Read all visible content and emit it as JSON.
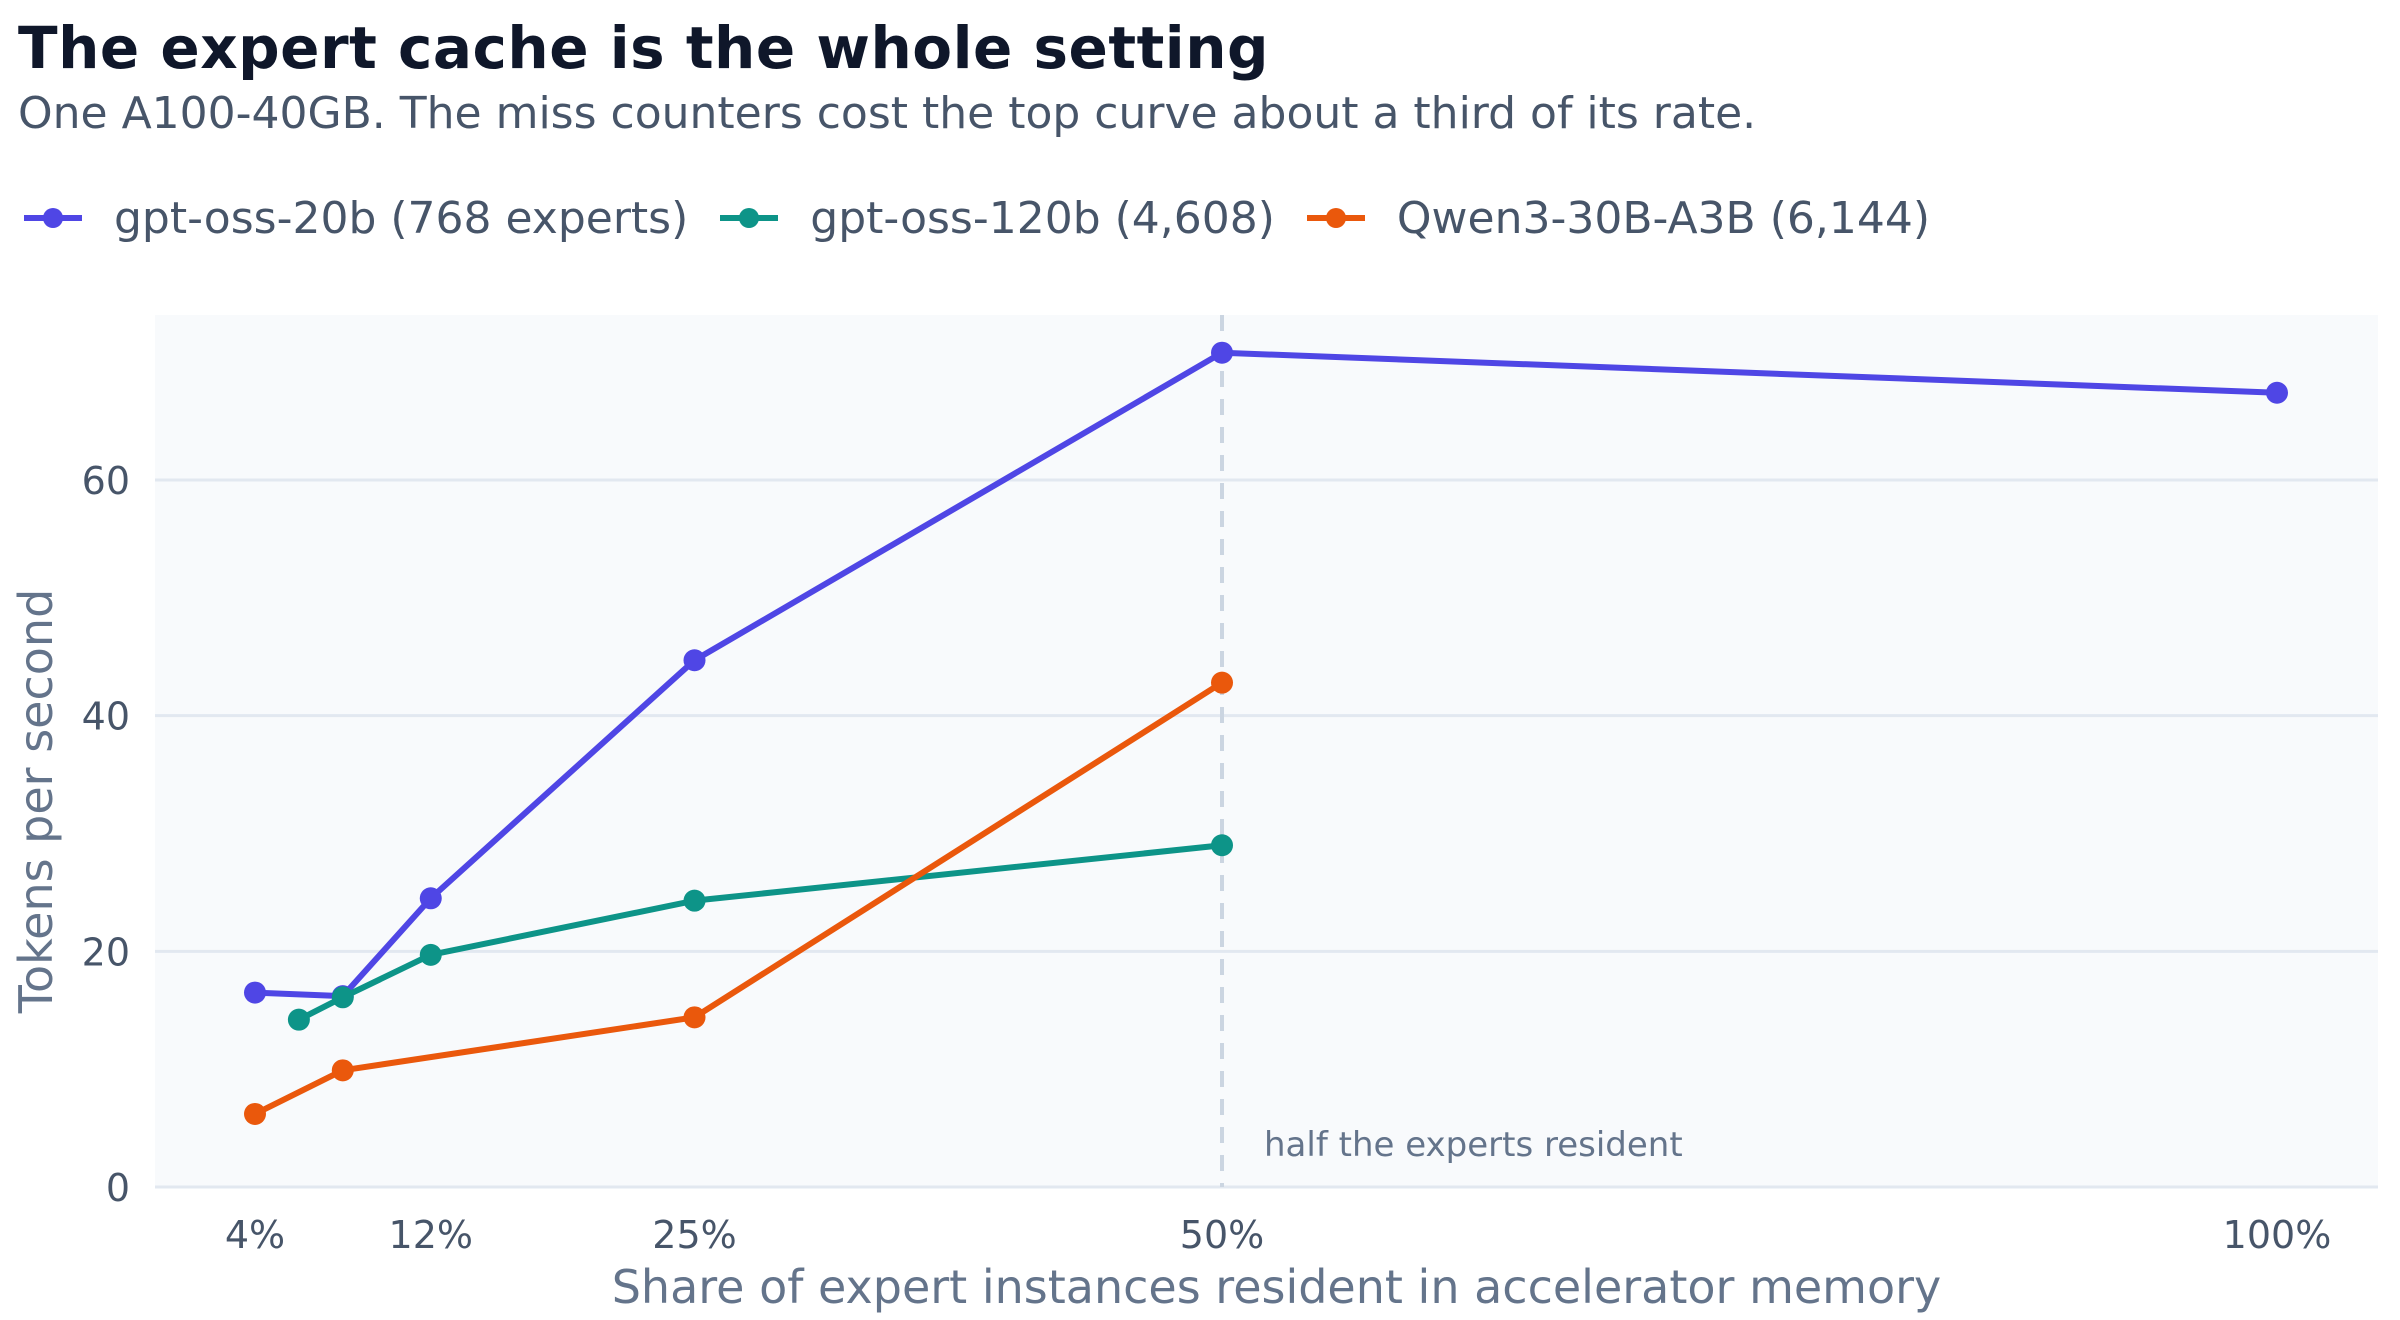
{
  "title": "The expert cache is the whole setting",
  "subtitle": "One A100-40GB. The miss counters cost the top curve about a third of its rate.",
  "chart_data": {
    "type": "line",
    "xlabel": "Share of expert instances resident in accelerator memory",
    "ylabel": "Tokens per second",
    "xlim": [
      0,
      100
    ],
    "ylim": [
      0,
      74
    ],
    "x_ticks": [
      {
        "value": 4.17,
        "label": "4%"
      },
      {
        "value": 12.5,
        "label": "12%"
      },
      {
        "value": 25,
        "label": "25%"
      },
      {
        "value": 50,
        "label": "50%"
      },
      {
        "value": 100,
        "label": "100%"
      }
    ],
    "y_ticks": [
      0,
      20,
      40,
      60
    ],
    "grid": true,
    "legend_position": "top-left",
    "series": [
      {
        "name": "gpt-oss-20b (768 experts)",
        "color": "#4f46e5",
        "points": [
          [
            4.17,
            16.5
          ],
          [
            8.33,
            16.2
          ],
          [
            12.5,
            24.5
          ],
          [
            25,
            44.7
          ],
          [
            50,
            70.8
          ],
          [
            100,
            67.4
          ]
        ]
      },
      {
        "name": "gpt-oss-120b (4,608)",
        "color": "#0d9488",
        "points": [
          [
            6.25,
            14.2
          ],
          [
            8.33,
            16.1
          ],
          [
            12.5,
            19.7
          ],
          [
            25,
            24.3
          ],
          [
            50,
            29.0
          ]
        ]
      },
      {
        "name": "Qwen3-30B-A3B (6,144)",
        "color": "#ea580c",
        "points": [
          [
            4.17,
            6.2
          ],
          [
            8.33,
            9.9
          ],
          [
            25,
            14.4
          ],
          [
            50,
            42.8
          ]
        ]
      }
    ],
    "annotations": [
      {
        "x": 50,
        "style": "dashed-vertical-line",
        "text": "half the experts resident"
      }
    ]
  }
}
